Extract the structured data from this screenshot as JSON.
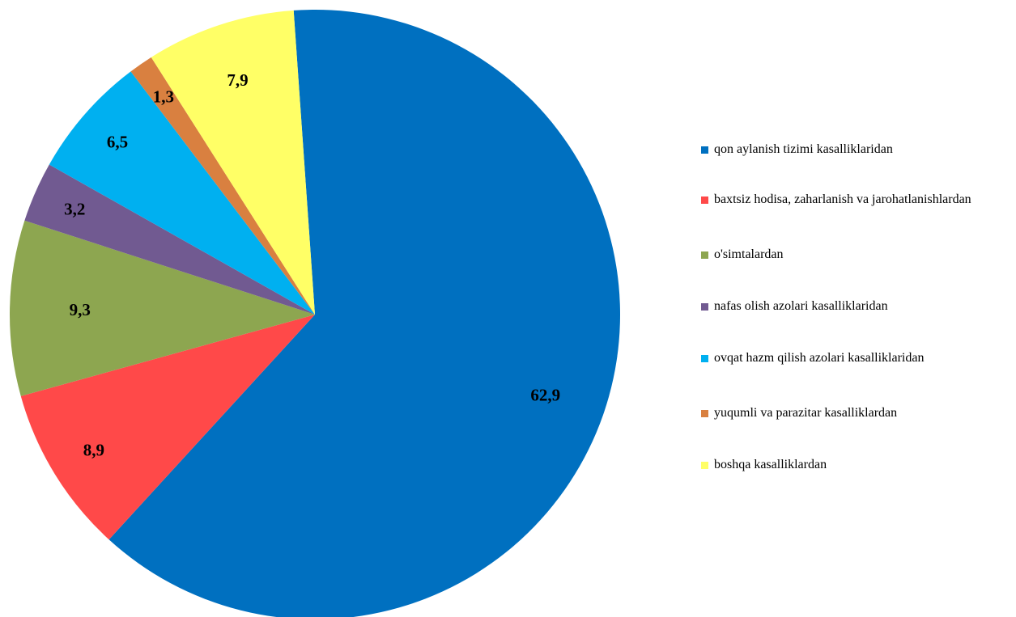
{
  "chart_data": {
    "type": "pie",
    "title": "",
    "legend_position": "right",
    "start_angle_deg": -4,
    "slices": [
      {
        "label": "qon aylanish tizimi kasalliklaridan",
        "value": 62.9,
        "display": "62,9",
        "color": "#0070C0"
      },
      {
        "label": "baxtsiz hodisa, zaharlanish va jarohatlanishlardan",
        "value": 8.9,
        "display": "8,9",
        "color": "#FF4949"
      },
      {
        "label": "o'simtalardan",
        "value": 9.3,
        "display": "9,3",
        "color": "#8DA650"
      },
      {
        "label": "nafas olish azolari kasalliklaridan",
        "value": 3.2,
        "display": "3,2",
        "color": "#715A91"
      },
      {
        "label": "ovqat hazm qilish azolari kasalliklaridan",
        "value": 6.5,
        "display": "6,5",
        "color": "#00B0F0"
      },
      {
        "label": "yuqumli va parazitar kasalliklardan",
        "value": 1.3,
        "display": "1,3",
        "color": "#D98040"
      },
      {
        "label": "boshqa kasalliklardan",
        "value": 7.9,
        "display": "7,9",
        "color": "#FFFF66"
      }
    ]
  }
}
